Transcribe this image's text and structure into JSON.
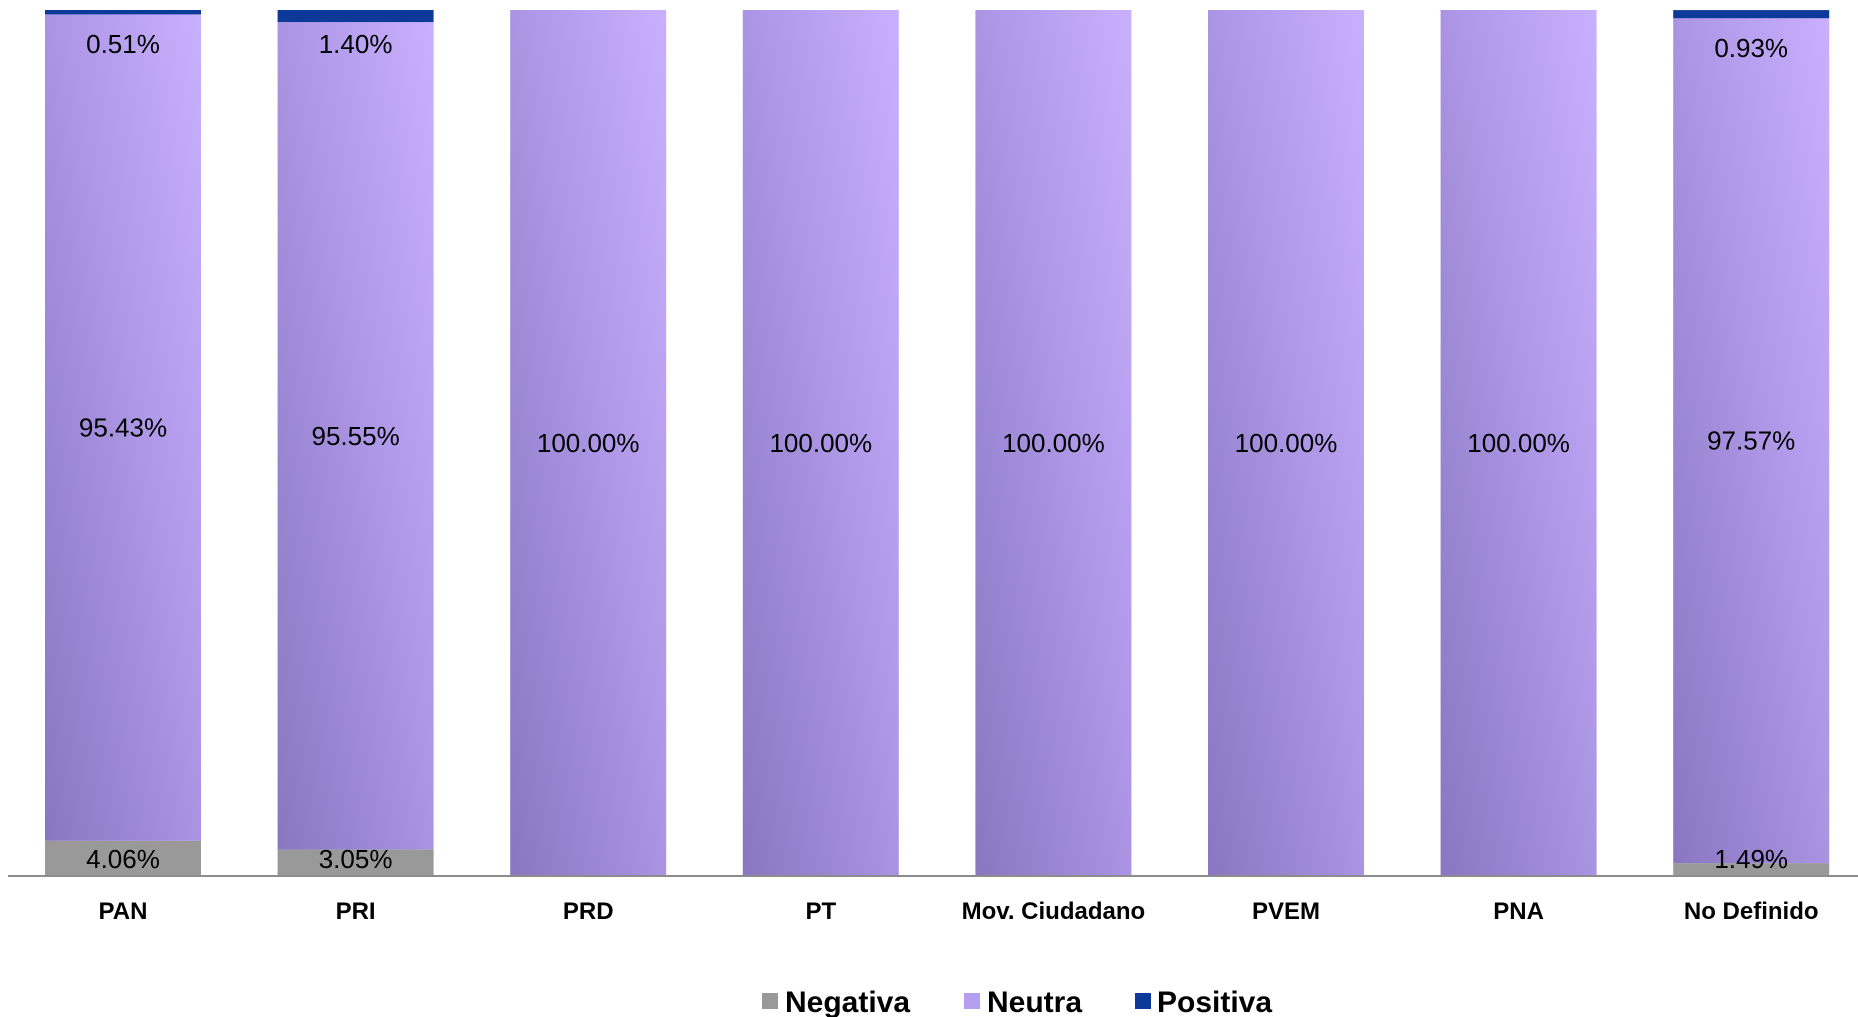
{
  "chart_data": {
    "type": "bar",
    "stacked": true,
    "percent": true,
    "categories": [
      "PAN",
      "PRI",
      "PRD",
      "PT",
      "Mov. Ciudadano",
      "PVEM",
      "PNA",
      "No Definido"
    ],
    "series": [
      {
        "name": "Negativa",
        "color": "#999999",
        "values": [
          4.06,
          3.05,
          0,
          0,
          0,
          0,
          0,
          1.49
        ],
        "labels": [
          "4.06%",
          "3.05%",
          "",
          "",
          "",
          "",
          "",
          "1.49%"
        ]
      },
      {
        "name": "Neutra",
        "color": "#b49ef0",
        "values": [
          95.43,
          95.55,
          100.0,
          100.0,
          100.0,
          100.0,
          100.0,
          97.57
        ],
        "labels": [
          "95.43%",
          "95.55%",
          "100.00%",
          "100.00%",
          "100.00%",
          "100.00%",
          "100.00%",
          "97.57%"
        ]
      },
      {
        "name": "Positiva",
        "color": "#0d3a9a",
        "values": [
          0.51,
          1.4,
          0,
          0,
          0,
          0,
          0,
          0.93
        ],
        "labels": [
          "0.51%",
          "1.40%",
          "",
          "",
          "",
          "",
          "",
          "0.93%"
        ]
      }
    ],
    "ylim": [
      0,
      100
    ],
    "grid": false,
    "legend_position": "bottom"
  }
}
